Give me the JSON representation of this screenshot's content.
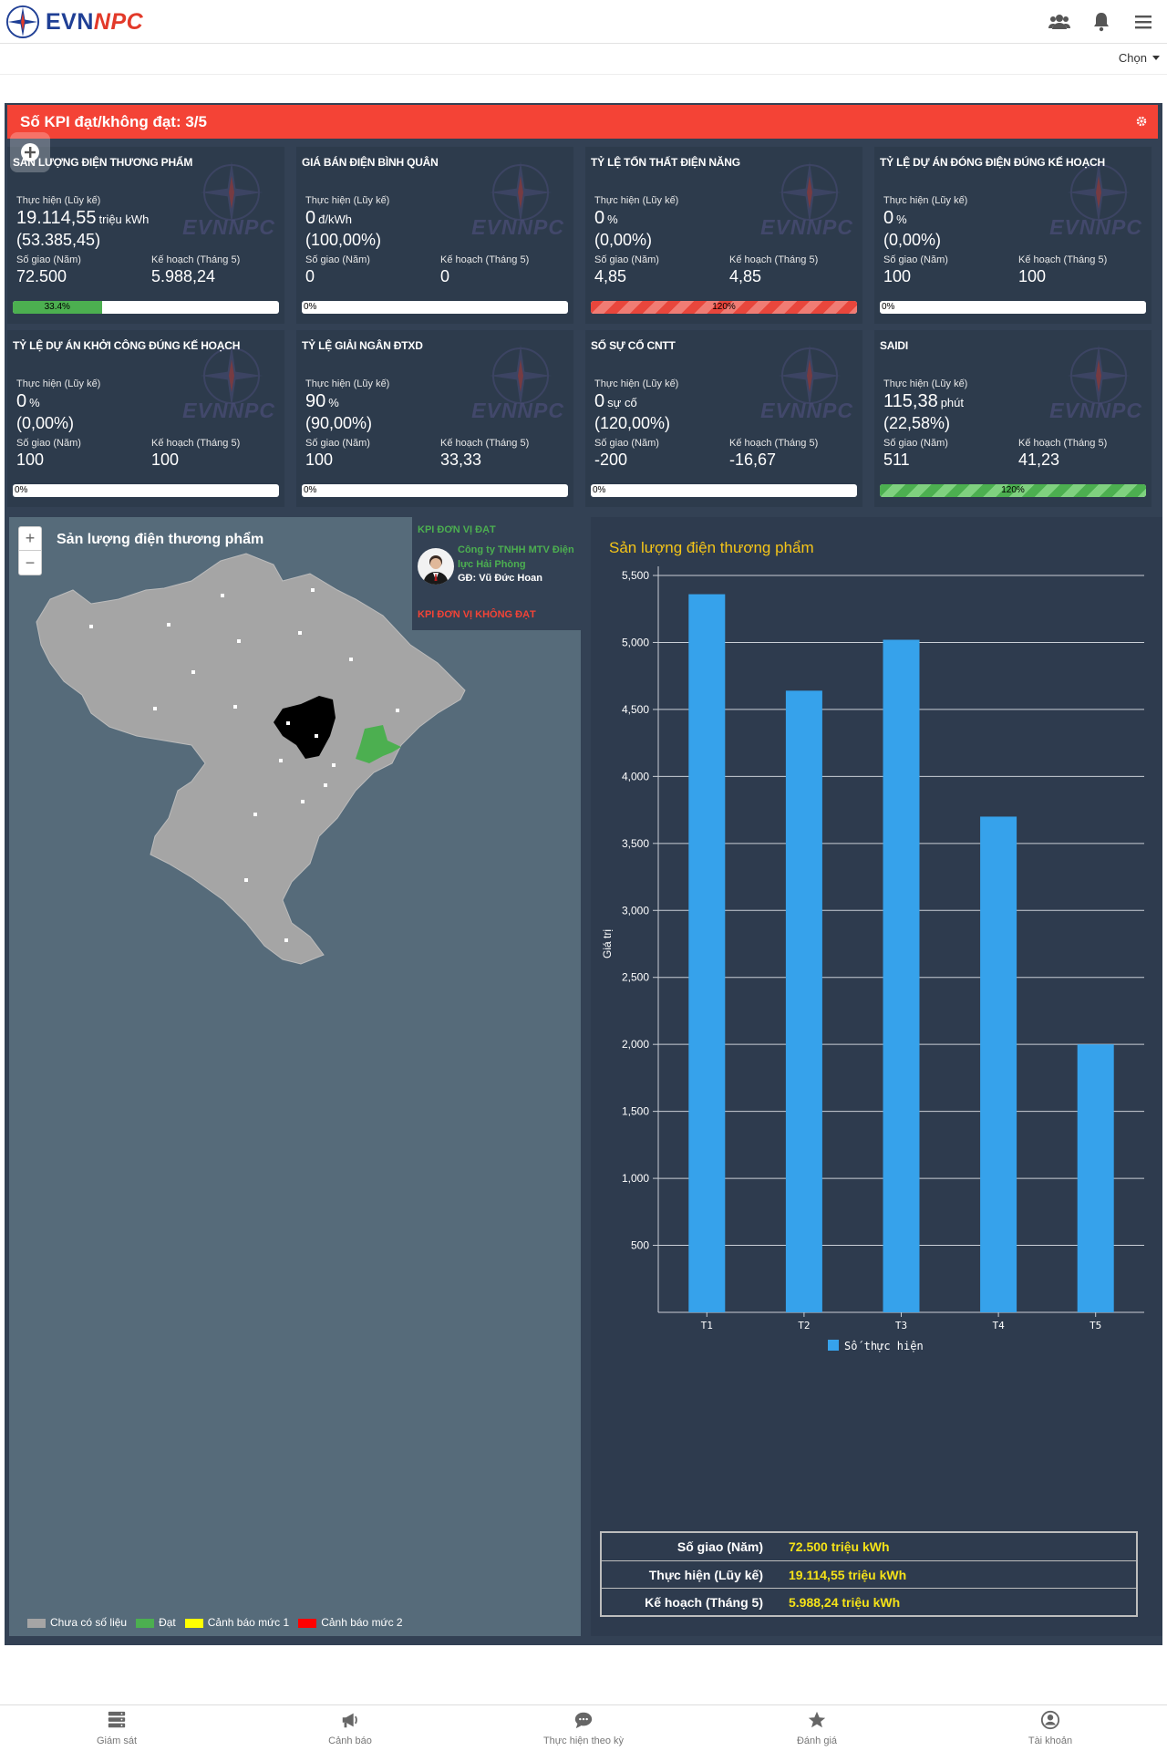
{
  "header": {
    "brand_a": "EVN",
    "brand_b": "NPC",
    "icons": [
      "users-icon",
      "bell-icon",
      "menu-icon"
    ],
    "select_label": "Chọn"
  },
  "kpi_header": {
    "title": "Số KPI đạt/không đạt: 3/5",
    "icon": "gear-icon"
  },
  "labels": {
    "thuc_hien": "Thực hiện (Lũy kế)",
    "so_giao": "Số giao (Năm)",
    "ke_hoach": "Kế hoạch (Tháng 5)",
    "watermark": "EVNNPC"
  },
  "cards": [
    {
      "title": "Sản lượng điện thương phẩm",
      "value": "19.114,55",
      "unit": "triệu kWh",
      "pct": "(53.385,45)",
      "so_giao": "72.500",
      "ke_hoach": "5.988,24",
      "bar_pct": 33.4,
      "bar_label": "33.4%",
      "bar_style": "green"
    },
    {
      "title": "Giá bán điện bình quân",
      "value": "0",
      "unit": "đ/kWh",
      "pct": "(100,00%)",
      "so_giao": "0",
      "ke_hoach": "0",
      "bar_pct": 0,
      "bar_label": "0%",
      "bar_style": "none"
    },
    {
      "title": "Tỷ lệ tổn thất điện năng",
      "value": "0",
      "unit": "%",
      "pct": "(0,00%)",
      "so_giao": "4,85",
      "ke_hoach": "4,85",
      "bar_pct": 100,
      "bar_label": "120%",
      "bar_style": "redstripe"
    },
    {
      "title": "Tỷ lệ dự án đóng điện đúng kế hoạch",
      "value": "0",
      "unit": "%",
      "pct": "(0,00%)",
      "so_giao": "100",
      "ke_hoach": "100",
      "bar_pct": 0,
      "bar_label": "0%",
      "bar_style": "none"
    },
    {
      "title": "Tỷ lệ dự án khởi công đúng kế hoạch",
      "value": "0",
      "unit": "%",
      "pct": "(0,00%)",
      "so_giao": "100",
      "ke_hoach": "100",
      "bar_pct": 0,
      "bar_label": "0%",
      "bar_style": "none"
    },
    {
      "title": "Tỷ lệ giải ngân ĐTXD",
      "value": "90",
      "unit": "%",
      "pct": "(90,00%)",
      "so_giao": "100",
      "ke_hoach": "33,33",
      "bar_pct": 0,
      "bar_label": "0%",
      "bar_style": "none"
    },
    {
      "title": "Số sự cố CNTT",
      "value": "0",
      "unit": "sự cố",
      "pct": "(120,00%)",
      "so_giao": "-200",
      "ke_hoach": "-16,67",
      "bar_pct": 0,
      "bar_label": "0%",
      "bar_style": "none"
    },
    {
      "title": "SAIDI",
      "value": "115,38",
      "unit": "phút",
      "pct": "(22,58%)",
      "so_giao": "511",
      "ke_hoach": "41,23",
      "bar_pct": 100,
      "bar_label": "120%",
      "bar_style": "greenstripe"
    }
  ],
  "map": {
    "title": "Sản lượng điện thương phẩm",
    "kpi_dat_label": "KPI ĐƠN VỊ ĐẠT",
    "company": "Công ty TNHH MTV Điện lực Hải Phòng",
    "director": "GĐ: Vũ Đức Hoan",
    "kpi_khong_dat_label": "KPI ĐƠN VỊ KHÔNG ĐẠT",
    "legend": [
      {
        "label": "Chưa có số liệu",
        "color": "#a5a5a5"
      },
      {
        "label": "Đạt",
        "color": "#4caf50"
      },
      {
        "label": "Cảnh báo mức 1",
        "color": "#ffff00"
      },
      {
        "label": "Cảnh báo mức 2",
        "color": "#ff0000"
      }
    ]
  },
  "chart_data": {
    "type": "bar",
    "title": "Sản lượng điện thương phẩm",
    "categories": [
      "T1",
      "T2",
      "T3",
      "T4",
      "T5"
    ],
    "series": [
      {
        "name": "Số thực hiện",
        "values": [
          5360,
          4640,
          5020,
          3700,
          2000
        ],
        "color": "#36a2eb"
      }
    ],
    "ylabel": "Giá trị",
    "ylim": [
      0,
      5500
    ],
    "yticks": [
      500,
      1000,
      1500,
      2000,
      2500,
      3000,
      3500,
      4000,
      4500,
      5000,
      5500
    ],
    "ytick_labels": [
      "500",
      "1,000",
      "1,500",
      "2,000",
      "2,500",
      "3,000",
      "3,500",
      "4,000",
      "4,500",
      "5,000",
      "5,500"
    ],
    "grid": true,
    "legend_position": "bottom"
  },
  "summary": [
    {
      "key": "Số giao (Năm)",
      "value": "72.500 triệu kWh"
    },
    {
      "key": "Thực hiện (Lũy kế)",
      "value": "19.114,55 triệu kWh"
    },
    {
      "key": "Kế hoạch (Tháng 5)",
      "value": "5.988,24 triệu kWh"
    }
  ],
  "nav": [
    {
      "label": "Giám sát",
      "icon": "server-icon"
    },
    {
      "label": "Cảnh báo",
      "icon": "megaphone-icon"
    },
    {
      "label": "Thực hiện theo kỳ",
      "icon": "chat-icon"
    },
    {
      "label": "Đánh giá",
      "icon": "star-icon"
    },
    {
      "label": "Tài khoản",
      "icon": "user-circle-icon"
    }
  ]
}
